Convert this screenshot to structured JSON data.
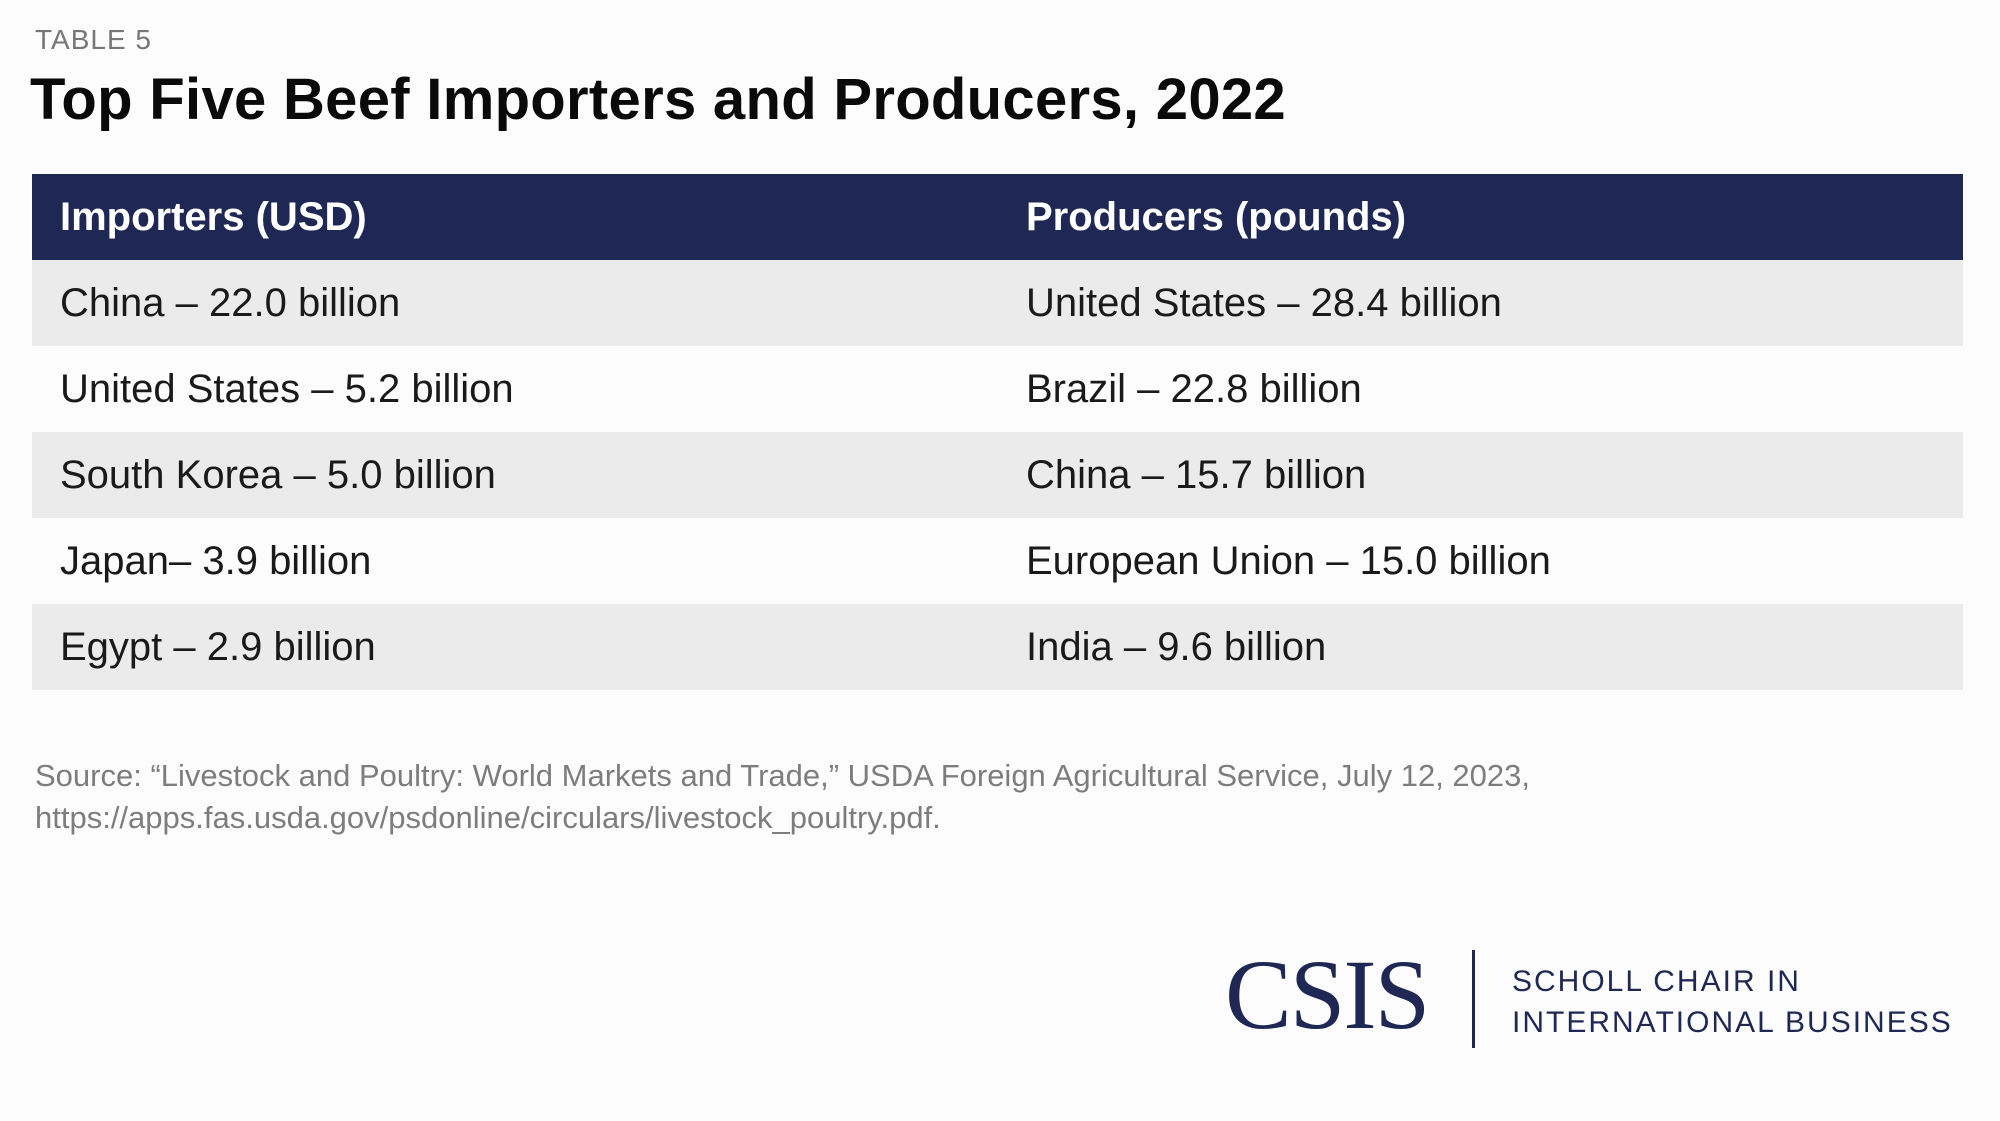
{
  "label": "TABLE 5",
  "title": "Top Five Beef Importers and Producers, 2022",
  "table": {
    "headers": [
      "Importers (USD)",
      "Producers (pounds)"
    ],
    "rows": [
      [
        "China – 22.0 billion",
        "United States – 28.4 billion"
      ],
      [
        "United States – 5.2 billion",
        "Brazil – 22.8 billion"
      ],
      [
        "South Korea – 5.0 billion",
        "China – 15.7 billion"
      ],
      [
        "Japan– 3.9 billion",
        "European Union – 15.0 billion"
      ],
      [
        "Egypt – 2.9 billion",
        "India – 9.6 billion"
      ]
    ]
  },
  "source": {
    "line1": "Source: “Livestock and Poultry: World Markets and Trade,” USDA Foreign Agricultural Service, July 12, 2023,",
    "line2": "https://apps.fas.usda.gov/psdonline/circulars/livestock_poultry.pdf."
  },
  "logo": {
    "name": "CSIS",
    "line1": "SCHOLL CHAIR IN",
    "line2": "INTERNATIONAL BUSINESS"
  },
  "colors": {
    "header_bg": "#1f2854",
    "stripe": "#ebebeb"
  }
}
